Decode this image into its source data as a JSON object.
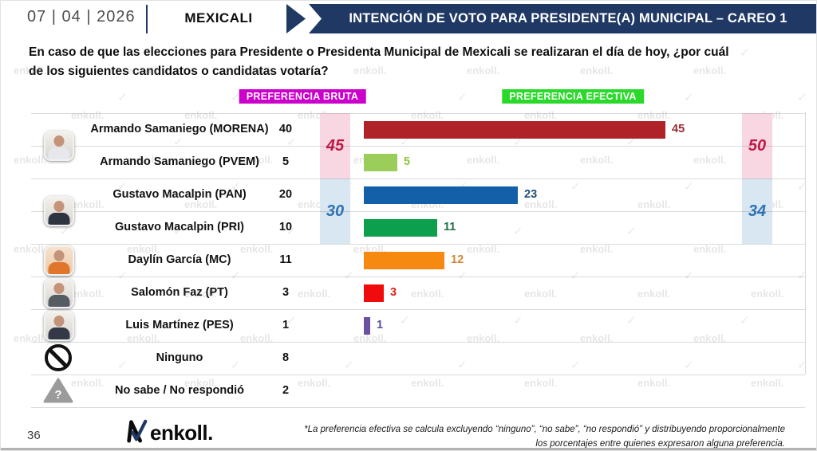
{
  "header": {
    "date": "07 | 04 | 2026",
    "city": "MEXICALI",
    "title": "INTENCIÓN DE VOTO PARA PRESIDENTE(A) MUNICIPAL – CAREO 1"
  },
  "question": {
    "text": "En caso de que las elecciones para Presidente o Presidenta Municipal de Mexicali se realizaran el día de hoy, ¿por cuál\nde los siguientes candidatos o candidatas votaría?"
  },
  "columns": {
    "bruta": "PREFERENCIA BRUTA",
    "efectiva": "PREFERENCIA EFECTIVA"
  },
  "table": {
    "rows": [
      {
        "name": "Armando Samaniego (MORENA)",
        "bruta": "40",
        "efectiva": 45,
        "color": "#AF2228",
        "label_color": "#9E2B33",
        "avatar": "samaniego",
        "avatar_span": 2
      },
      {
        "name": "Armando Samaniego (PVEM)",
        "bruta": "5",
        "efectiva": 5,
        "color": "#9ACD5A",
        "label_color": "#8CC63E"
      },
      {
        "name": "Gustavo Macalpin (PAN)",
        "bruta": "20",
        "efectiva": 23,
        "color": "#1360A8",
        "label_color": "#1F4E79",
        "avatar": "macalpin",
        "avatar_span": 2
      },
      {
        "name": "Gustavo Macalpin (PRI)",
        "bruta": "10",
        "efectiva": 11,
        "color": "#0CA04E",
        "label_color": "#1E7145"
      },
      {
        "name": "Daylín García (MC)",
        "bruta": "11",
        "efectiva": 12,
        "color": "#F68A10",
        "label_color": "#CE8A36",
        "avatar": "daylin"
      },
      {
        "name": "Salomón Faz (PT)",
        "bruta": "3",
        "efectiva": 3,
        "color": "#F00C0C",
        "label_color": "#E02020",
        "avatar": "salomon"
      },
      {
        "name": "Luis Martínez (PES)",
        "bruta": "1",
        "efectiva": 1,
        "color": "#6A51A1",
        "label_color": "#5E4A9C",
        "avatar": "luis"
      },
      {
        "name": "Ninguno",
        "bruta": "8",
        "efectiva": null,
        "icon": "no-entry"
      },
      {
        "name": "No sabe / No respondió",
        "bruta": "2",
        "efectiva": null,
        "icon": "question-triangle"
      }
    ]
  },
  "summary": {
    "bruta": [
      {
        "value": "45",
        "theme": "pink"
      },
      {
        "value": "30",
        "theme": "blue"
      }
    ],
    "efectiva": [
      {
        "value": "50",
        "theme": "pink"
      },
      {
        "value": "34",
        "theme": "blue"
      }
    ]
  },
  "chart_data": {
    "type": "bar",
    "title": "INTENCIÓN DE VOTO PARA PRESIDENTE(A) MUNICIPAL – CAREO 1",
    "subtitle": "En caso de que las elecciones para Presidente o Presidenta Municipal de Mexicali se realizaran el día de hoy, ¿por cuál de los siguientes candidatos o candidatas votaría?",
    "categories": [
      "Armando Samaniego (MORENA)",
      "Armando Samaniego (PVEM)",
      "Gustavo Macalpin (PAN)",
      "Gustavo Macalpin (PRI)",
      "Daylín García (MC)",
      "Salomón Faz (PT)",
      "Luis Martínez (PES)",
      "Ninguno",
      "No sabe / No respondió"
    ],
    "series": [
      {
        "name": "PREFERENCIA BRUTA",
        "values": [
          40,
          5,
          20,
          10,
          11,
          3,
          1,
          8,
          2
        ]
      },
      {
        "name": "PREFERENCIA EFECTIVA",
        "values": [
          45,
          5,
          23,
          11,
          12,
          3,
          1,
          null,
          null
        ]
      }
    ],
    "bar_colors": [
      "#AF2228",
      "#9ACD5A",
      "#1360A8",
      "#0CA04E",
      "#F68A10",
      "#F00C0C",
      "#6A51A1",
      null,
      null
    ],
    "group_subtotals": [
      {
        "group": "Armando Samaniego (MORENA+PVEM)",
        "bruta": 45,
        "efectiva": 50
      },
      {
        "group": "Gustavo Macalpin (PAN+PRI)",
        "bruta": 30,
        "efectiva": 34
      }
    ],
    "xlim": [
      0,
      50
    ],
    "orientation": "horizontal",
    "grid": false,
    "accent_colors": {
      "bruta_header": "#CC00CC",
      "efectiva_header": "#2BD92B",
      "pink_band": "#F8D7E3",
      "blue_band": "#D8E7F2",
      "navy_banner": "#1F3864"
    }
  },
  "icons": {
    "question_mark": "?"
  },
  "watermark": {
    "text": "enkoll.",
    "mark": "✓"
  },
  "footer": {
    "page": "36",
    "logo_text": "enkoll.",
    "note": "*La preferencia efectiva se calcula excluyendo “ninguno”, “no sabe”, “no respondió” y distribuyendo proporcionalmente\nlos porcentajes entre quienes expresaron alguna preferencia."
  }
}
